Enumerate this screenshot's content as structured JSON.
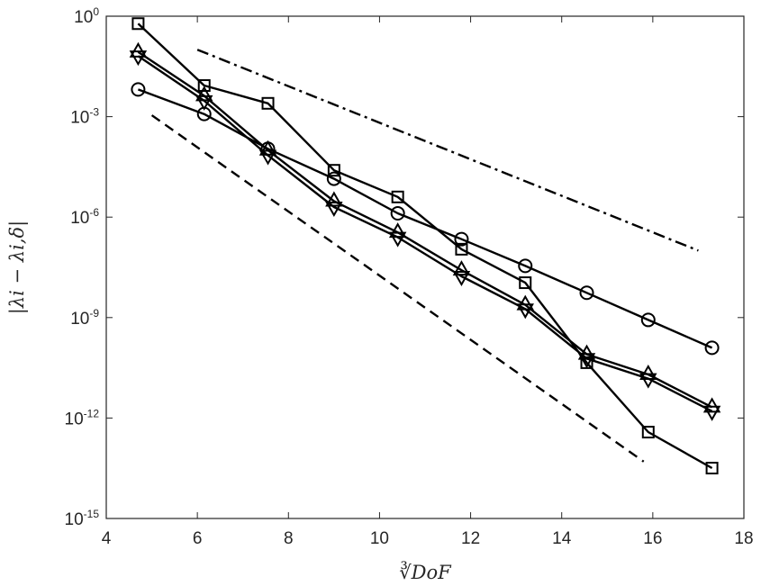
{
  "chart_data": {
    "type": "line",
    "title": "",
    "xlabel": "∛DoF",
    "ylabel": "|λi − λi,δ|",
    "xlim": [
      4,
      18
    ],
    "ylim_exponent": [
      -15,
      0
    ],
    "y_scale": "log",
    "grid": false,
    "legend": "none",
    "x_ticks": [
      "4",
      "6",
      "8",
      "10",
      "12",
      "14",
      "16",
      "18"
    ],
    "y_ticks": [
      {
        "base": "10",
        "exp": "0",
        "value": 1
      },
      {
        "base": "10",
        "exp": "-3",
        "value": 0.001
      },
      {
        "base": "10",
        "exp": "-6",
        "value": 1e-06
      },
      {
        "base": "10",
        "exp": "-9",
        "value": 1e-09
      },
      {
        "base": "10",
        "exp": "-12",
        "value": 1e-12
      },
      {
        "base": "10",
        "exp": "-15",
        "value": 1e-15
      }
    ],
    "series": [
      {
        "marker": "square",
        "color": "#000000",
        "x": [
          4.7,
          6.15,
          7.55,
          9.0,
          10.4,
          11.8,
          13.2,
          14.55,
          15.9,
          17.3
        ],
        "y": [
          0.6,
          0.0085,
          0.0025,
          2.5e-05,
          4e-06,
          1.1e-07,
          1.1e-08,
          4.5e-11,
          3.8e-13,
          3.2e-14
        ]
      },
      {
        "marker": "circle",
        "color": "#000000",
        "x": [
          4.7,
          6.15,
          7.55,
          9.0,
          10.4,
          11.8,
          13.2,
          14.55,
          15.9,
          17.3
        ],
        "y": [
          0.0065,
          0.0012,
          0.00011,
          1.4e-05,
          1.3e-06,
          2.2e-07,
          3.5e-08,
          5.5e-09,
          8.5e-10,
          1.25e-10
        ]
      },
      {
        "marker": "triangle-up",
        "color": "#000000",
        "x": [
          4.7,
          6.15,
          7.55,
          9.0,
          10.4,
          11.8,
          13.2,
          14.55,
          15.9,
          17.3
        ],
        "y": [
          0.085,
          0.0042,
          0.0001,
          3e-06,
          3.5e-07,
          2.6e-08,
          2.4e-09,
          8e-11,
          2e-11,
          2.1e-12
        ]
      },
      {
        "marker": "triangle-down",
        "color": "#000000",
        "x": [
          4.7,
          6.15,
          7.55,
          9.0,
          10.4,
          11.8,
          13.2,
          14.55,
          15.9,
          17.3
        ],
        "y": [
          0.065,
          0.003,
          7e-05,
          2e-06,
          2.5e-07,
          1.7e-08,
          1.8e-09,
          6e-11,
          1.5e-11,
          1.6e-12
        ]
      }
    ],
    "reference_lines": [
      {
        "style": "dash-dot",
        "x": [
          6.0,
          17.0
        ],
        "y": [
          0.1,
          1e-07
        ]
      },
      {
        "style": "dashed",
        "x": [
          5.0,
          15.8
        ],
        "y": [
          0.0011,
          5e-14
        ]
      }
    ]
  }
}
